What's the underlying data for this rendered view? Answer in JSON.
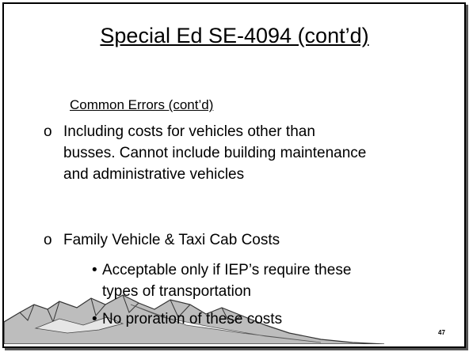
{
  "title": "Special Ed SE-4094 (cont’d)",
  "subtitle": "Common Errors (cont’d)",
  "bullets": [
    {
      "marker": "o",
      "lines": [
        "Including costs for vehicles other than",
        "busses. Cannot include building maintenance",
        "and administrative vehicles"
      ]
    },
    {
      "marker": "o",
      "lines": [
        "Family Vehicle & Taxi Cab Costs"
      ],
      "sub_bullets": [
        {
          "marker": "•",
          "lines": [
            "Acceptable only if IEP’s require these",
            "types of transportation"
          ]
        },
        {
          "marker": "•",
          "lines": [
            "No proration of these costs"
          ]
        }
      ]
    }
  ],
  "slide_number": "47"
}
